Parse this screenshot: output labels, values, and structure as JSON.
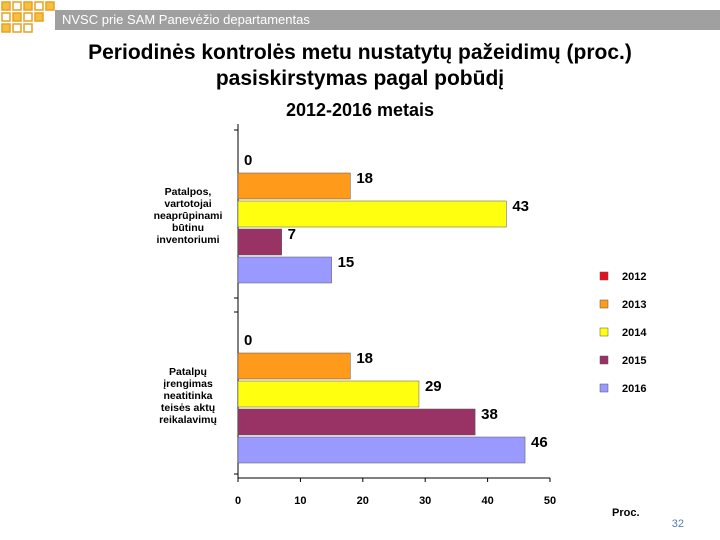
{
  "header": {
    "org": "NVSC prie SAM Panevėžio departamentas"
  },
  "slide": {
    "title_line1": "Periodinės kontrolės metu nustatytų pažeidimų (proc.)",
    "title_line2": "pasiskirstymas pagal pobūdį",
    "subtitle": "2012-2016 metais",
    "page_number": "32"
  },
  "colors": {
    "2012": "#e8101f",
    "2013": "#ff9a1a",
    "2014": "#ffff10",
    "2015": "#993366",
    "2016": "#9999ff"
  },
  "chart_data": {
    "type": "bar",
    "orientation": "horizontal",
    "title": "Periodinės kontrolės metu nustatytų pažeidimų (proc.) pasiskirstymas pagal pobūdį 2012-2016 metais",
    "xlabel": "Proc.",
    "xlim": [
      0,
      50
    ],
    "xticks": [
      "0",
      "10",
      "20",
      "30",
      "40",
      "50"
    ],
    "categories": [
      [
        "Patalpos,",
        "vartotojai",
        "neaprūpinami",
        "būtinu",
        "inventoriumi"
      ],
      [
        "Patalpų",
        "įrengimas",
        "neatitinka",
        "teisės aktų",
        "reikalavimų"
      ]
    ],
    "series": [
      {
        "name": "2012",
        "values": [
          0,
          0
        ]
      },
      {
        "name": "2013",
        "values": [
          18,
          18
        ]
      },
      {
        "name": "2014",
        "values": [
          43,
          29
        ]
      },
      {
        "name": "2015",
        "values": [
          7,
          38
        ]
      },
      {
        "name": "2016",
        "values": [
          15,
          46
        ]
      }
    ],
    "legend_position": "right",
    "grid": false
  }
}
